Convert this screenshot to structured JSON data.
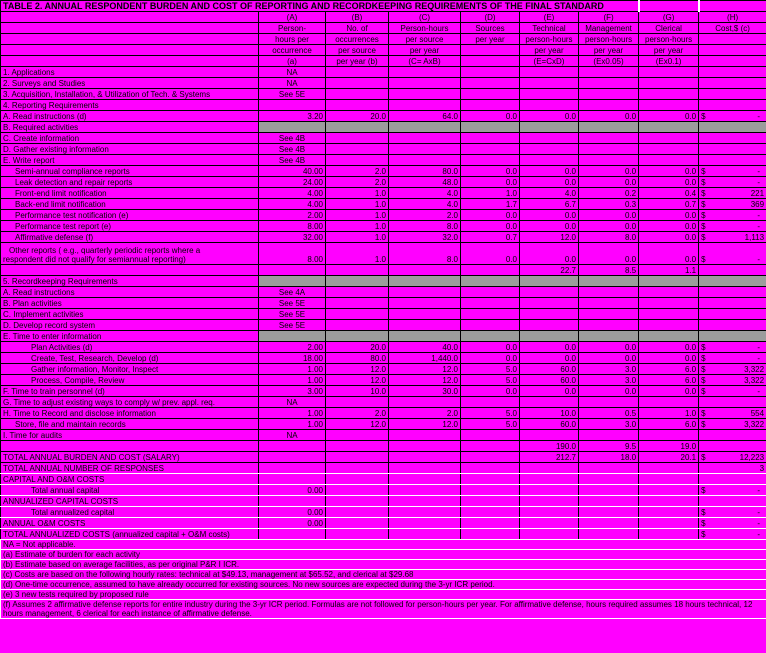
{
  "title": "TABLE 2. ANNUAL RESPONDENT BURDEN AND COST OF REPORTING AND RECORDKEEPING REQUIREMENTS OF THE FINAL STANDARD",
  "currency": "$",
  "colors": {
    "fill": "#FF00FF",
    "section_gray": "#9C9C9C",
    "grid": "#000000",
    "text": "#000000",
    "comment_marker": "#FF0000",
    "white_separator": "#FFFFFF"
  },
  "columns": [
    {
      "key": "A",
      "lines": [
        "(A)",
        "Person-",
        "hours per",
        "occurrence",
        "(a)"
      ]
    },
    {
      "key": "B",
      "lines": [
        "(B)",
        "No. of",
        "occurrences",
        "per source",
        "per year (b)"
      ]
    },
    {
      "key": "C",
      "lines": [
        "(C)",
        "Person-hours",
        "per source",
        "per year",
        "(C= AxB)"
      ]
    },
    {
      "key": "D",
      "lines": [
        "(D)",
        "Sources",
        "per year",
        "",
        ""
      ]
    },
    {
      "key": "E",
      "lines": [
        "(E)",
        "Technical",
        "person-hours",
        "per year",
        "(E=CxD)"
      ]
    },
    {
      "key": "F",
      "lines": [
        "(F)",
        "Management",
        "person-hours",
        "per year",
        "(Ex0.05)"
      ]
    },
    {
      "key": "G",
      "lines": [
        "(G)",
        "Clerical",
        "person-hours",
        "per year",
        "(Ex0.1)"
      ]
    },
    {
      "key": "H",
      "lines": [
        "(H)",
        "Cost,$ (c)",
        "",
        "",
        ""
      ]
    }
  ],
  "rows": [
    {
      "label": "1. Applications",
      "c": [
        "NA",
        null,
        null,
        null,
        null,
        null,
        null,
        null
      ]
    },
    {
      "label": "2. Surveys and Studies",
      "c": [
        "NA",
        null,
        null,
        null,
        null,
        null,
        null,
        null
      ]
    },
    {
      "label": "3. Acquisition, Installation, & Utilization of Tech. & Systems",
      "c": [
        "See 5E",
        null,
        null,
        null,
        null,
        null,
        null,
        null
      ]
    },
    {
      "label": "4. Reporting Requirements"
    },
    {
      "label": "A. Read instructions (d)",
      "c": [
        "3.20",
        "20.0",
        "64.0",
        "0.0",
        "0.0",
        "0.0",
        "0.0",
        "-"
      ]
    },
    {
      "label": "B. Required activities",
      "gray": true
    },
    {
      "label": "C. Create information",
      "c": [
        "See 4B",
        null,
        null,
        null,
        null,
        null,
        null,
        null
      ]
    },
    {
      "label": "D. Gather existing information",
      "c": [
        "See 4B",
        null,
        null,
        null,
        null,
        null,
        null,
        null
      ]
    },
    {
      "label": "E. Write report",
      "c": [
        "See 4B",
        null,
        null,
        null,
        null,
        null,
        null,
        null
      ]
    },
    {
      "label": "Semi-annual compliance reports",
      "indent": 1,
      "c": [
        "40.00",
        "2.0",
        "80.0",
        "0.0",
        "0.0",
        "0.0",
        "0.0",
        "-"
      ]
    },
    {
      "label": "Leak detection and repair reports",
      "indent": 1,
      "c": [
        "24.00",
        "2.0",
        "48.0",
        "0.0",
        "0.0",
        "0.0",
        "0.0",
        "-"
      ]
    },
    {
      "label": "Front-end limit notification",
      "indent": 1,
      "c": [
        "4.00",
        "1.0",
        "4.0",
        "1.0",
        "4.0",
        "0.2",
        "0.4",
        "221"
      ]
    },
    {
      "label": "Back-end limit notification",
      "indent": 1,
      "c": [
        "4.00",
        "1.0",
        "4.0",
        "1.7",
        "6.7",
        "0.3",
        "0.7",
        "369"
      ]
    },
    {
      "label": "Performance test notification (e)",
      "indent": 1,
      "c": [
        "2.00",
        "1.0",
        "2.0",
        "0.0",
        "0.0",
        "0.0",
        "0.0",
        "-"
      ]
    },
    {
      "label": "Performance test report (e)",
      "indent": 1,
      "c": [
        "8.00",
        "1.0",
        "8.0",
        "0.0",
        "0.0",
        "0.0",
        "0.0",
        "-"
      ]
    },
    {
      "label": "Affirmative defense (f)",
      "indent": 1,
      "c": [
        "32.00",
        "1.0",
        "32.0",
        "0.7",
        "12.0",
        "8.0",
        "0.0",
        "1,113"
      ],
      "comments": [
        3,
        4
      ]
    },
    {
      "label_lines": [
        "Other reports ( e.g., quarterly periodic reports where a",
        "respondent did not qualify for semiannual reporting)"
      ],
      "tall": true,
      "c": [
        "8.00",
        "1.0",
        "8.0",
        "0.0",
        "0.0",
        "0.0",
        "0.0",
        "-"
      ]
    },
    {
      "label": "",
      "c": [
        null,
        null,
        null,
        null,
        "22.7",
        "8.5",
        "1.1",
        null
      ]
    },
    {
      "label": "5. Recordkeeping Requirements",
      "gray": true
    },
    {
      "label": "A. Read instructions",
      "c": [
        "See 4A",
        null,
        null,
        null,
        null,
        null,
        null,
        null
      ]
    },
    {
      "label": "B. Plan activities",
      "c": [
        "See 5E",
        null,
        null,
        null,
        null,
        null,
        null,
        null
      ]
    },
    {
      "label": "C. Implement activities",
      "c": [
        "See 5E",
        null,
        null,
        null,
        null,
        null,
        null,
        null
      ]
    },
    {
      "label": "D. Develop record system",
      "c": [
        "See 5E",
        null,
        null,
        null,
        null,
        null,
        null,
        null
      ]
    },
    {
      "label": "E. Time to enter information",
      "gray": true
    },
    {
      "label": "Plan Activities (d)",
      "indent": 2,
      "c": [
        "2.00",
        "20.0",
        "40.0",
        "0.0",
        "0.0",
        "0.0",
        "0.0",
        "-"
      ]
    },
    {
      "label": "Create, Test, Research, Develop (d)",
      "indent": 2,
      "c": [
        "18.00",
        "80.0",
        "1,440.0",
        "0.0",
        "0.0",
        "0.0",
        "0.0",
        "-"
      ]
    },
    {
      "label": "Gather information, Monitor, Inspect",
      "indent": 2,
      "c": [
        "1.00",
        "12.0",
        "12.0",
        "5.0",
        "60.0",
        "3.0",
        "6.0",
        "3,322"
      ]
    },
    {
      "label": "Process, Compile, Review",
      "indent": 2,
      "c": [
        "1.00",
        "12.0",
        "12.0",
        "5.0",
        "60.0",
        "3.0",
        "6.0",
        "3,322"
      ]
    },
    {
      "label": "F. Time to train personnel (d)",
      "c": [
        "3.00",
        "10.0",
        "30.0",
        "0.0",
        "0.0",
        "0.0",
        "0.0",
        "-"
      ]
    },
    {
      "label": "G. Time to adjust existing ways to comply w/ prev. appl. req.",
      "c": [
        "NA",
        null,
        null,
        null,
        null,
        null,
        null,
        null
      ]
    },
    {
      "label": "H. Time to Record and disclose information",
      "c": [
        "1.00",
        "2.0",
        "2.0",
        "5.0",
        "10.0",
        "0.5",
        "1.0",
        "554"
      ]
    },
    {
      "label": "Store, file and maintain records",
      "indent": 1,
      "c": [
        "1.00",
        "12.0",
        "12.0",
        "5.0",
        "60.0",
        "3.0",
        "6.0",
        "3,322"
      ]
    },
    {
      "label": "I. Time for audits",
      "c": [
        "NA",
        null,
        null,
        null,
        null,
        null,
        null,
        null
      ]
    },
    {
      "label": "",
      "c": [
        null,
        null,
        null,
        null,
        "190.0",
        "9.5",
        "19.0",
        null
      ]
    },
    {
      "label": "TOTAL ANNUAL BURDEN AND COST (SALARY)",
      "c": [
        null,
        null,
        null,
        null,
        "212.7",
        "18.0",
        "20.1",
        "12,223"
      ]
    },
    {
      "label": "TOTAL ANNUAL NUMBER OF RESPONSES",
      "c": [
        null,
        null,
        null,
        null,
        null,
        null,
        null,
        "3"
      ],
      "h_plain": true,
      "wsep": true
    },
    {
      "label": "CAPITAL AND O&M COSTS",
      "wsep": true
    },
    {
      "label": "Total annual capital",
      "indent": 2,
      "c": [
        "0.00",
        null,
        null,
        null,
        null,
        null,
        null,
        "-"
      ],
      "wsep": true
    },
    {
      "label": "ANNUALIZED CAPITAL COSTS",
      "wsep": true
    },
    {
      "label": "Total annualized capital",
      "indent": 2,
      "c": [
        "0.00",
        null,
        null,
        null,
        null,
        null,
        null,
        "-"
      ],
      "wsep": true
    },
    {
      "label": "ANNUAL O&M COSTS",
      "c": [
        "0.00",
        null,
        null,
        null,
        null,
        null,
        null,
        "-"
      ],
      "wsep": true
    },
    {
      "label": "TOTAL ANNUALIZED COSTS (annualized capital + O&M costs)",
      "c": [
        null,
        null,
        null,
        null,
        null,
        null,
        null,
        "-"
      ],
      "wsep": true
    }
  ],
  "footnotes": [
    "NA = Not applicable.",
    "(a) Estimate of burden for each activity",
    "(b) Estimate based on average facilities, as per original P&R I ICR.",
    "(c) Costs are based on the following hourly rates:  technical at $49.13, management at $65.52, and clerical at $29.68",
    "(d) One-time occurrence, assumed to have already occurred for existing sources.  No new sources are expected during the 3-yr ICR period.",
    "(e) 3 new tests required by proposed rule",
    "(f) Assumes 2 affirmative defense reports for entire industry during the 3-yr ICR period.  Formulas are not followed for person-hours per year.  For affirmative defense, hours required assumes 18 hours technical, 12 hours management, 6 clerical for each instance of affirmative defense."
  ]
}
